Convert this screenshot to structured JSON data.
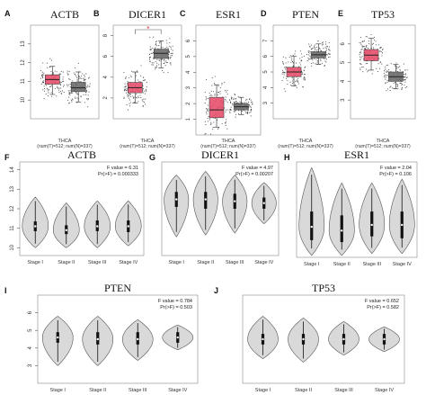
{
  "colors": {
    "tumor": "#e8506e",
    "normal": "#6d6d6d",
    "violin_fill": "#d9d9d9",
    "violin_stroke": "#555555",
    "sig_star": "#e0303f",
    "frame": "#333333"
  },
  "chart_data": [
    {
      "panel": "A",
      "type": "box",
      "title": "ACTB",
      "ylim": [
        9,
        14
      ],
      "yticks": [
        10,
        11,
        12,
        13
      ],
      "xlabel": "THCA",
      "xlabel2": "(num(T)=512; num(N)=337)",
      "series": [
        {
          "name": "",
          "q1": 10.85,
          "median": 11.1,
          "q3": 11.35,
          "min": 10.3,
          "max": 11.8
        },
        {
          "name": "",
          "q1": 10.45,
          "median": 10.65,
          "q3": 10.95,
          "min": 9.9,
          "max": 11.5
        }
      ],
      "significance": ""
    },
    {
      "panel": "B",
      "type": "box",
      "title": "DICER1",
      "ylim": [
        0,
        9
      ],
      "yticks": [
        2,
        4,
        6,
        8
      ],
      "xlabel": "THCA",
      "xlabel2": "(num(T)=512; num(N)=337)",
      "series": [
        {
          "name": "",
          "q1": 2.5,
          "median": 3.0,
          "q3": 3.5,
          "min": 1.5,
          "max": 4.5
        },
        {
          "name": "",
          "q1": 5.8,
          "median": 6.3,
          "q3": 6.7,
          "min": 4.9,
          "max": 7.5
        }
      ],
      "significance": "*"
    },
    {
      "panel": "C",
      "type": "box",
      "title": "ESR1",
      "ylim": [
        0,
        7
      ],
      "yticks": [
        1,
        2,
        3,
        4,
        5,
        6
      ],
      "xlabel": "THCA",
      "xlabel2": "(num(T)=512; num(N)=337)",
      "series": [
        {
          "name": "",
          "q1": 1.1,
          "median": 1.6,
          "q3": 2.4,
          "min": 0.5,
          "max": 3.2
        },
        {
          "name": "",
          "q1": 1.6,
          "median": 1.8,
          "q3": 2.0,
          "min": 1.3,
          "max": 2.4
        }
      ],
      "significance": ""
    },
    {
      "panel": "D",
      "type": "box",
      "title": "PTEN",
      "ylim": [
        2,
        8
      ],
      "yticks": [
        3,
        4,
        5,
        6,
        7
      ],
      "xlabel": "THCA",
      "xlabel2": "(num(T)=512; num(N)=337)",
      "series": [
        {
          "name": "",
          "q1": 4.7,
          "median": 5.0,
          "q3": 5.3,
          "min": 4.1,
          "max": 6.0
        },
        {
          "name": "",
          "q1": 5.9,
          "median": 6.1,
          "q3": 6.3,
          "min": 5.5,
          "max": 6.8
        }
      ],
      "significance": ""
    },
    {
      "panel": "E",
      "type": "box",
      "title": "TP53",
      "ylim": [
        2,
        7
      ],
      "yticks": [
        3,
        4,
        5,
        6
      ],
      "xlabel": "THCA",
      "xlabel2": "(num(T)=512; num(N)=337)",
      "series": [
        {
          "name": "",
          "q1": 5.1,
          "median": 5.4,
          "q3": 5.7,
          "min": 4.6,
          "max": 6.3
        },
        {
          "name": "",
          "q1": 4.0,
          "median": 4.25,
          "q3": 4.5,
          "min": 3.6,
          "max": 4.9
        }
      ],
      "significance": ""
    },
    {
      "panel": "F",
      "type": "violin",
      "title": "ACTB",
      "ylim": [
        9.6,
        14.4
      ],
      "yticks": [
        10,
        11,
        12,
        13,
        14
      ],
      "categories": [
        "Stage I",
        "Stage II",
        "Stage III",
        "Stage IV"
      ],
      "f_value": "F value = 6.31",
      "p_value": "Pr(>F) = 0.000333",
      "medians": [
        11.1,
        10.9,
        11.1,
        11.1
      ],
      "q1": [
        10.85,
        10.7,
        10.85,
        10.8
      ],
      "q3": [
        11.35,
        11.15,
        11.4,
        11.4
      ],
      "violin_min": [
        10.0,
        10.0,
        10.0,
        10.1
      ],
      "violin_max": [
        12.6,
        12.3,
        12.4,
        12.4
      ]
    },
    {
      "panel": "G",
      "type": "violin",
      "title": "DICER1",
      "ylim": [
        0,
        5
      ],
      "yticks": [],
      "categories": [
        "Stage I",
        "Stage II",
        "Stage III",
        "Stage IV"
      ],
      "f_value": "F value = 4.97",
      "p_value": "Pr(>F) = 0.00207",
      "medians": [
        3.0,
        3.0,
        2.9,
        2.8
      ],
      "q1": [
        2.6,
        2.5,
        2.5,
        2.5
      ],
      "q3": [
        3.4,
        3.4,
        3.3,
        3.1
      ],
      "violin_min": [
        1.0,
        1.1,
        1.2,
        1.7
      ],
      "violin_max": [
        4.3,
        4.5,
        4.3,
        3.9
      ]
    },
    {
      "panel": "H",
      "type": "violin",
      "title": "ESR1",
      "ylim": [
        0,
        5
      ],
      "yticks": [],
      "categories": [
        "Stage I",
        "Stage II",
        "Stage III",
        "Stage IV"
      ],
      "f_value": "F value = 2.04",
      "p_value": "Pr(>F) = 0.106",
      "medians": [
        1.6,
        1.4,
        1.7,
        1.7
      ],
      "q1": [
        0.9,
        0.8,
        1.1,
        1.0
      ],
      "q3": [
        2.4,
        2.2,
        2.4,
        2.4
      ],
      "violin_min": [
        0.1,
        0.1,
        0.2,
        0.2
      ],
      "violin_max": [
        4.7,
        3.9,
        3.9,
        4.1
      ]
    },
    {
      "panel": "I",
      "type": "violin",
      "title": "PTEN",
      "ylim": [
        2,
        7
      ],
      "yticks": [
        3,
        4,
        5,
        6
      ],
      "categories": [
        "Stage I",
        "Stage II",
        "Stage III",
        "Stage IV"
      ],
      "f_value": "F value = 0.784",
      "p_value": "Pr(>F) = 0.503",
      "medians": [
        4.6,
        4.5,
        4.5,
        4.6
      ],
      "q1": [
        4.3,
        4.2,
        4.2,
        4.3
      ],
      "q3": [
        4.9,
        4.9,
        4.9,
        4.9
      ],
      "violin_min": [
        3.0,
        3.0,
        3.3,
        3.9
      ],
      "violin_max": [
        5.8,
        5.8,
        5.6,
        5.3
      ]
    },
    {
      "panel": "J",
      "type": "violin",
      "title": "TP53",
      "ylim": [
        2,
        7
      ],
      "yticks": [],
      "categories": [
        "Stage I",
        "Stage II",
        "Stage III",
        "Stage IV"
      ],
      "f_value": "F value = 0.652",
      "p_value": "Pr(>F) = 0.582",
      "medians": [
        4.5,
        4.5,
        4.5,
        4.5
      ],
      "q1": [
        4.2,
        4.2,
        4.2,
        4.2
      ],
      "q3": [
        4.8,
        4.8,
        4.8,
        4.8
      ],
      "violin_min": [
        3.4,
        3.2,
        3.6,
        3.8
      ],
      "violin_max": [
        5.8,
        5.7,
        5.5,
        5.2
      ]
    }
  ]
}
